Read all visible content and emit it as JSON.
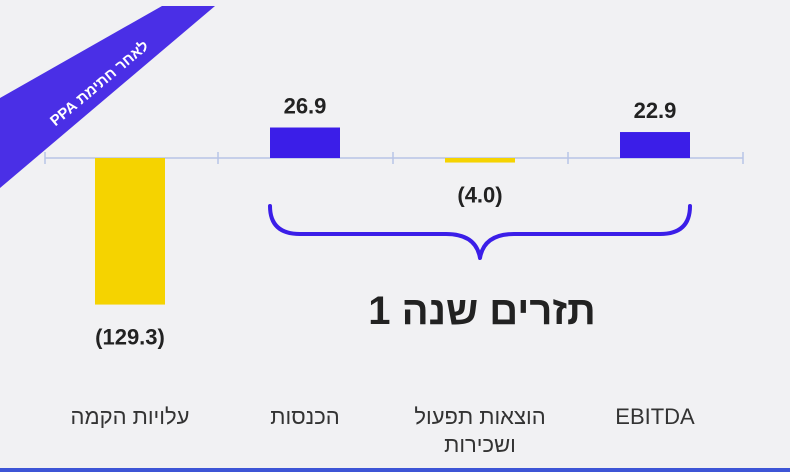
{
  "ribbon": {
    "text": "לאחר חתימת PPA",
    "color": "#4a2fe6"
  },
  "chart_data": {
    "type": "bar",
    "categories": [
      "EBITDA",
      "הוצאות תפעול ושכירות",
      "הכנסות",
      "עלויות הקמה"
    ],
    "category_lines": [
      [
        "EBITDA"
      ],
      [
        "הוצאות תפעול",
        "ושכירות"
      ],
      [
        "הכנסות"
      ],
      [
        "עלויות הקמה"
      ]
    ],
    "values": [
      22.9,
      -4.0,
      26.9,
      -129.3
    ],
    "value_labels": [
      "22.9",
      "(4.0)",
      "26.9",
      "(129.3)"
    ],
    "colors": [
      "#3b1ee8",
      "#f5d300",
      "#3b1ee8",
      "#f5d300"
    ],
    "group_label": "תזרים שנה 1",
    "group_covers": [
      "EBITDA",
      "הוצאות תפעול ושכירות",
      "הכנסות"
    ],
    "group_color": "#3b1ee8",
    "axis_color": "#b8c4e6",
    "grid": false
  }
}
